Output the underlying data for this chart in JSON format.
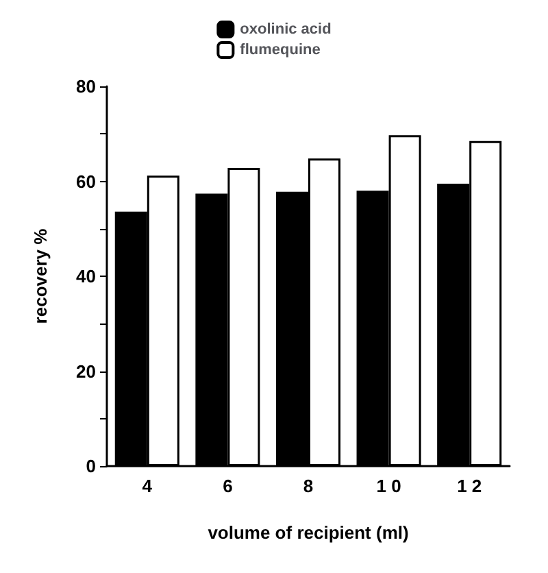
{
  "chart_data": {
    "type": "bar",
    "xlabel": "volume of recipient (ml)",
    "ylabel": "recovery %",
    "categories": [
      "4",
      "6",
      "8",
      "1 0",
      "1 2"
    ],
    "series": [
      {
        "name": "oxolinic acid",
        "color": "#000000",
        "values": [
          53.6,
          57.4,
          57.8,
          58,
          59.5
        ]
      },
      {
        "name": "flumequine",
        "color": "#ffffff",
        "values": [
          61.2,
          62.8,
          64.8,
          69.7,
          68.5
        ]
      }
    ],
    "ylim": [
      0,
      80
    ],
    "yticks": [
      0,
      {
        "value": 10,
        "label": null
      },
      20,
      {
        "value": 30,
        "label": null
      },
      40,
      {
        "value": 50,
        "label": null
      },
      60,
      {
        "value": 70,
        "label": null
      },
      80
    ],
    "grid": false,
    "legend": "top"
  }
}
